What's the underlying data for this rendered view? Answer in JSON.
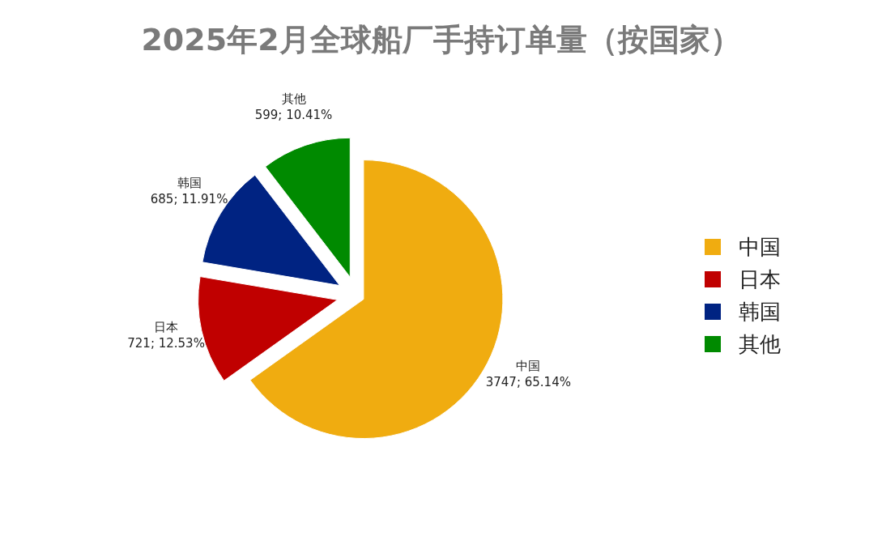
{
  "chart_data": {
    "type": "pie",
    "title": "2025年2月全球船厂手持订单量（按国家）",
    "categories": [
      "中国",
      "日本",
      "韩国",
      "其他"
    ],
    "values": [
      3747,
      721,
      685,
      599
    ],
    "colors": [
      "#f0ac10",
      "#c00000",
      "#002382",
      "#008a00"
    ],
    "value_labels": [
      "3747; 65.14%",
      "721; 12.53%",
      "685; 11.91%",
      "599; 10.41%"
    ],
    "legend": "right"
  }
}
